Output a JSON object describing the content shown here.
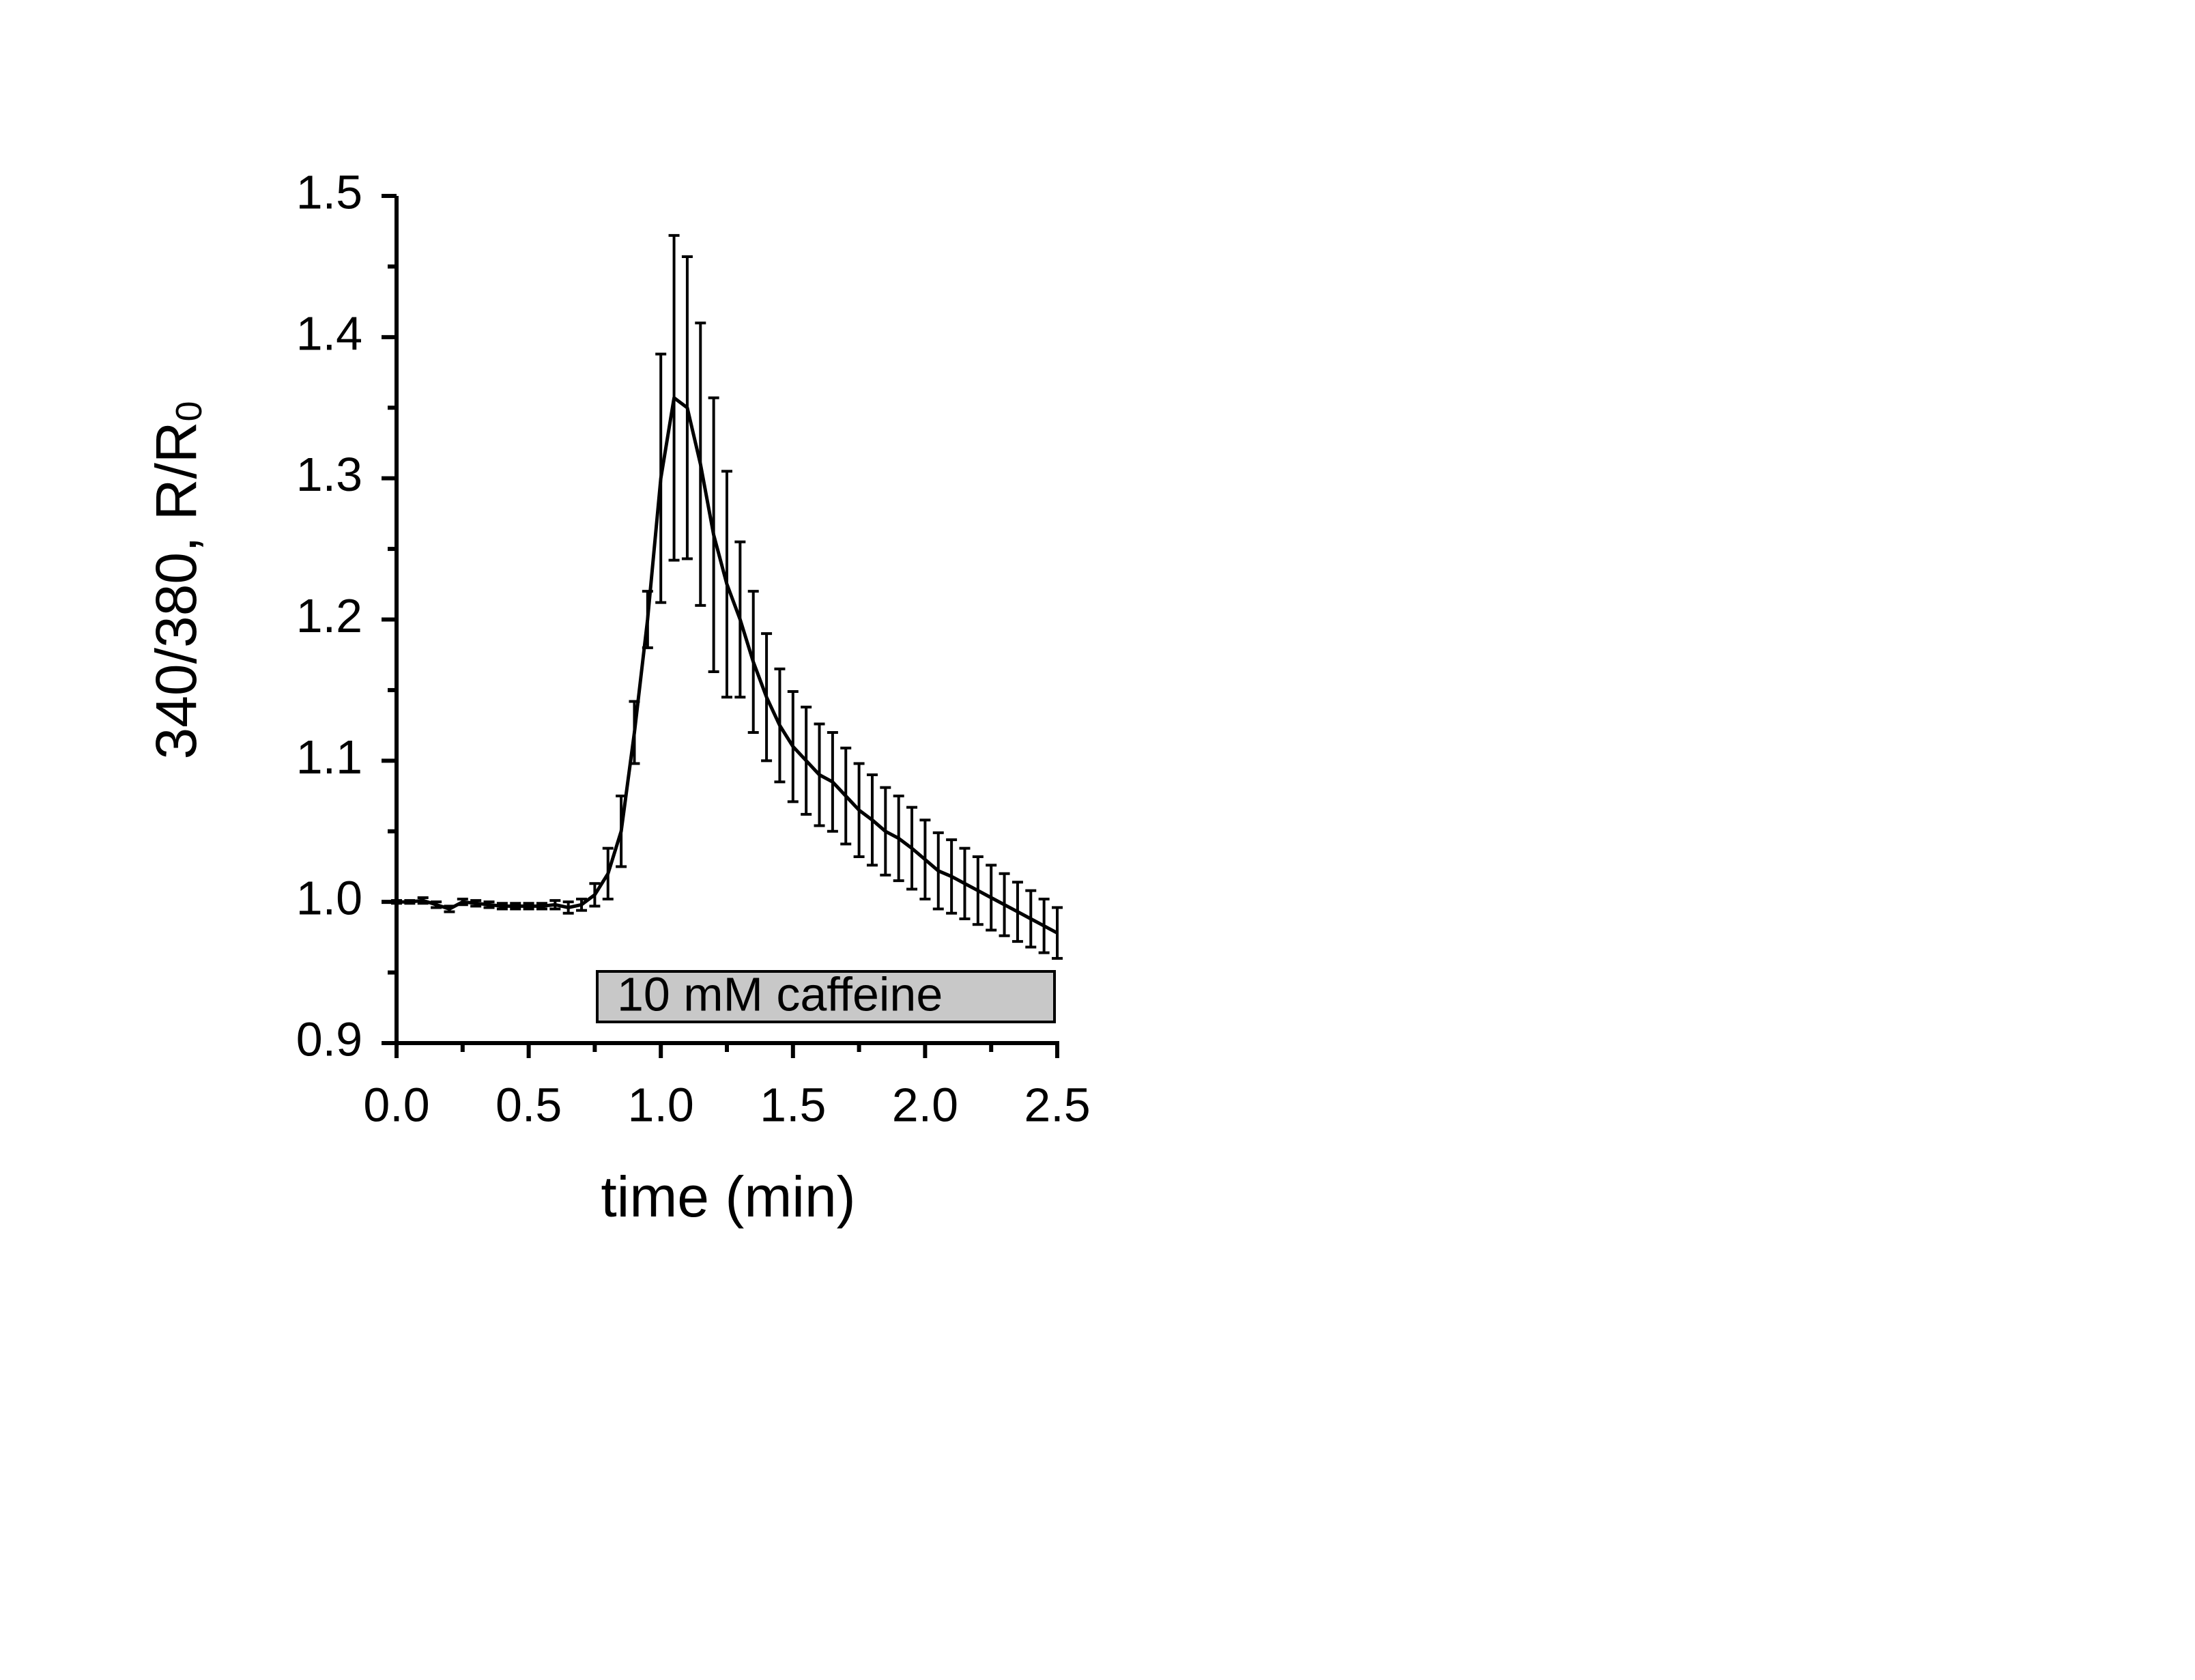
{
  "chart_data": {
    "type": "errorline",
    "xlabel": "time (min)",
    "ylabel": "340/380, R/R",
    "ylabel_subscript": "0",
    "annotation": "10 mM caffeine",
    "color": "#000000",
    "x": [
      0,
      0.05,
      0.1,
      0.15,
      0.2,
      0.25,
      0.3,
      0.35,
      0.4,
      0.45,
      0.5,
      0.55,
      0.6,
      0.65,
      0.7,
      0.75,
      0.8,
      0.85,
      0.9,
      0.95,
      1.0,
      1.05,
      1.1,
      1.15,
      1.2,
      1.25,
      1.3,
      1.35,
      1.4,
      1.45,
      1.5,
      1.55,
      1.6,
      1.65,
      1.7,
      1.75,
      1.8,
      1.85,
      1.9,
      1.95,
      2.0,
      2.05,
      2.1,
      2.15,
      2.2,
      2.25,
      2.3,
      2.35,
      2.4,
      2.45,
      2.5
    ],
    "values": [
      1.0,
      1.0,
      1.001,
      0.998,
      0.995,
      1.0,
      0.999,
      0.998,
      0.997,
      0.997,
      0.997,
      0.997,
      0.998,
      0.996,
      0.998,
      1.005,
      1.02,
      1.05,
      1.12,
      1.2,
      1.3,
      1.357,
      1.35,
      1.31,
      1.26,
      1.225,
      1.2,
      1.17,
      1.145,
      1.125,
      1.11,
      1.1,
      1.09,
      1.085,
      1.075,
      1.065,
      1.058,
      1.05,
      1.045,
      1.038,
      1.03,
      1.022,
      1.018,
      1.013,
      1.008,
      1.003,
      0.998,
      0.993,
      0.988,
      0.983,
      0.978
    ],
    "errors": [
      0.001,
      0.001,
      0.002,
      0.002,
      0.002,
      0.002,
      0.002,
      0.002,
      0.002,
      0.002,
      0.002,
      0.002,
      0.003,
      0.004,
      0.004,
      0.008,
      0.018,
      0.025,
      0.022,
      0.02,
      0.088,
      0.115,
      0.107,
      0.1,
      0.097,
      0.08,
      0.055,
      0.05,
      0.045,
      0.04,
      0.039,
      0.038,
      0.036,
      0.035,
      0.034,
      0.033,
      0.032,
      0.031,
      0.03,
      0.029,
      0.028,
      0.027,
      0.026,
      0.025,
      0.024,
      0.023,
      0.022,
      0.021,
      0.02,
      0.019,
      0.018
    ],
    "xlim": [
      0,
      2.5
    ],
    "ylim": [
      0.9,
      1.5
    ],
    "xticks": [
      {
        "value": 0,
        "label": "0.0"
      },
      0.5,
      {
        "value": 1,
        "label": "1.0"
      },
      1.5,
      {
        "value": 2,
        "label": "2.0"
      },
      2.5
    ],
    "yticks": [
      0.9,
      {
        "value": 1,
        "label": "1.0"
      },
      1.1,
      1.2,
      1.3,
      1.4,
      1.5
    ],
    "xminorticks": [
      0.25,
      0.75,
      1.25,
      1.75,
      2.25
    ],
    "yminorticks": [
      0.95,
      1.05,
      1.15,
      1.25,
      1.35,
      1.45
    ]
  }
}
